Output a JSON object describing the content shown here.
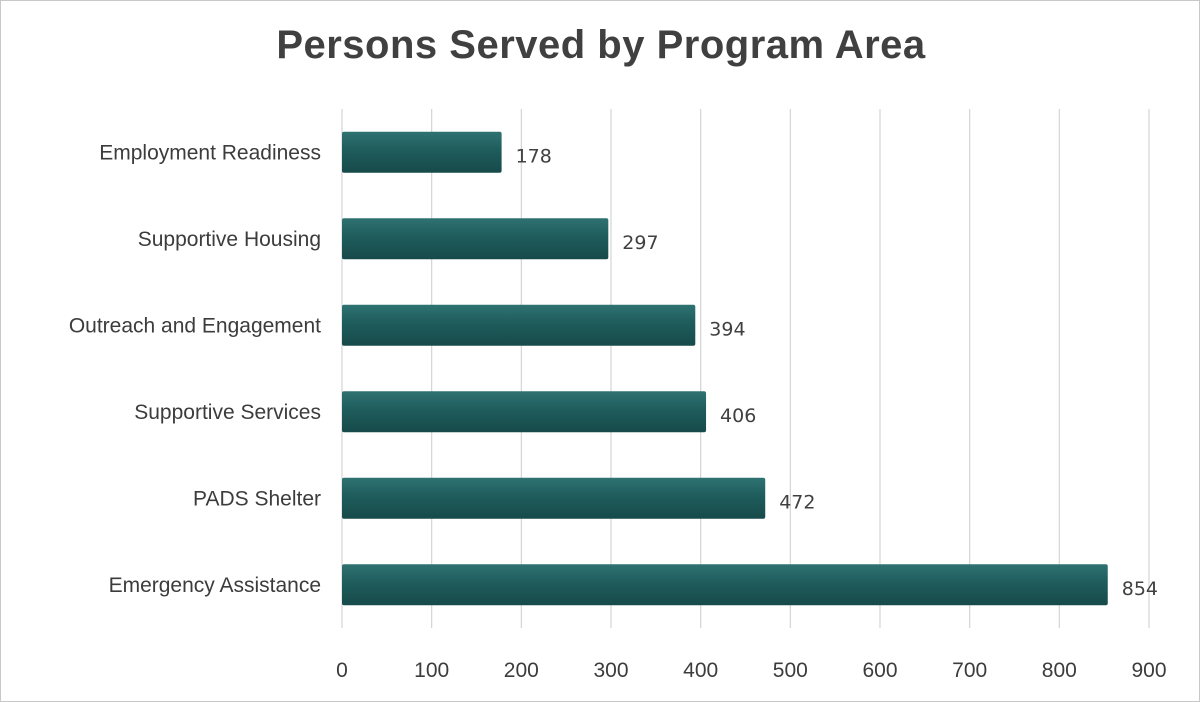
{
  "chart_data": {
    "type": "bar",
    "orientation": "horizontal",
    "title": "Persons Served by Program Area",
    "categories": [
      "Employment Readiness",
      "Supportive Housing",
      "Outreach and Engagement",
      "Supportive Services",
      "PADS Shelter",
      "Emergency Assistance"
    ],
    "values": [
      178,
      297,
      394,
      406,
      472,
      854
    ],
    "xlim": [
      0,
      900
    ],
    "xticks": [
      0,
      100,
      200,
      300,
      400,
      500,
      600,
      700,
      800,
      900
    ],
    "grid": "vertical",
    "legend": "none",
    "data_labels": true,
    "bar_color": "#1f5c5c"
  }
}
